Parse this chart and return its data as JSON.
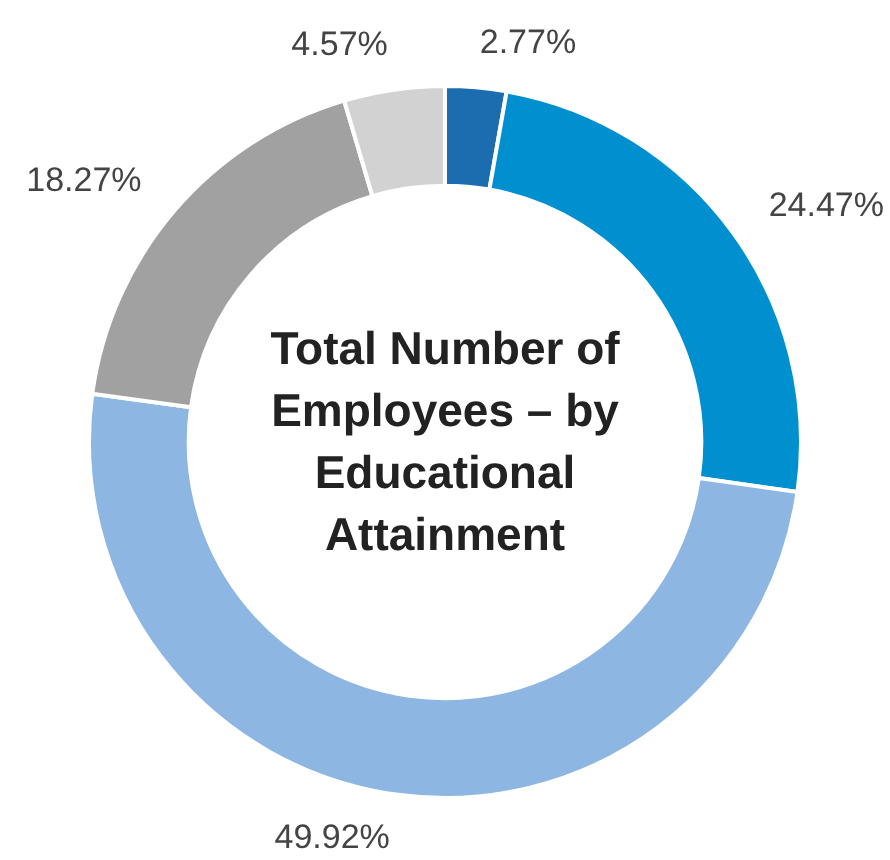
{
  "chart_data": {
    "type": "donut",
    "title": "Total Number of Employees – by Educational Attainment",
    "categories": [
      null,
      null,
      null,
      null,
      null
    ],
    "values": [
      2.77,
      24.47,
      49.92,
      18.27,
      4.57
    ],
    "value_labels": [
      "2.77%",
      "24.47%",
      "49.92%",
      "18.27%",
      "4.57%"
    ],
    "colors": [
      "#1b6db0",
      "#0090d0",
      "#8db6e2",
      "#a1a1a1",
      "#d2d2d2"
    ],
    "legend": false
  }
}
